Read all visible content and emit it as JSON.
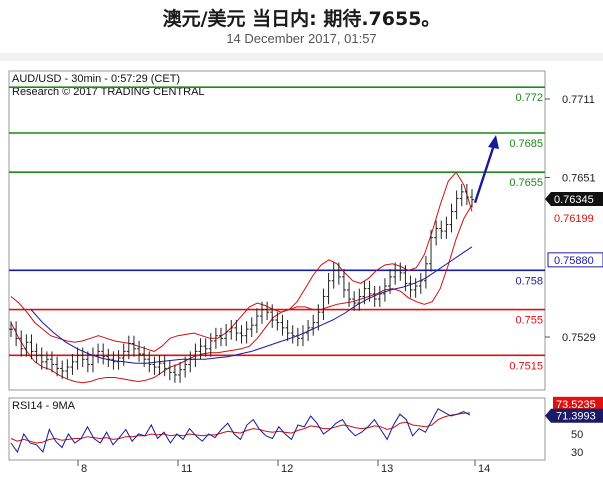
{
  "header": {
    "title": "澳元/美元 当日内: 期待.7655。",
    "date": "14 December 2017, 01:57"
  },
  "chart_info": {
    "line1": "AUD/USD - 30min - 0:57:29 (CET)",
    "line2": "Research © 2017 TRADING CENTRAL"
  },
  "chart_data": {
    "type": "line",
    "instrument": "AUD/USD",
    "timeframe": "30min",
    "x_ticks": [
      "8",
      "11",
      "12",
      "13",
      "14"
    ],
    "price_axis": {
      "ticks": [
        "0.7711",
        "0.7651",
        "0.7529"
      ],
      "current_price": "0.76345",
      "previous_level": "0.76199",
      "blue_level": "0.75880"
    },
    "levels": [
      {
        "label": "0.772",
        "value": 0.772,
        "color": "#1a8a1a"
      },
      {
        "label": "0.7685",
        "value": 0.7685,
        "color": "#1a8a1a"
      },
      {
        "label": "0.7655",
        "value": 0.7655,
        "color": "#1a8a1a"
      },
      {
        "label": "0.758",
        "value": 0.758,
        "color": "#1a1aaa"
      },
      {
        "label": "0.755",
        "value": 0.755,
        "color": "#e01010"
      },
      {
        "label": "0.7515",
        "value": 0.7515,
        "color": "#e01010"
      }
    ],
    "price_series": [
      0.7535,
      0.7528,
      0.752,
      0.7525,
      0.7518,
      0.7515,
      0.751,
      0.7512,
      0.7508,
      0.7505,
      0.7503,
      0.7506,
      0.751,
      0.7515,
      0.7512,
      0.7508,
      0.7515,
      0.7518,
      0.7514,
      0.7512,
      0.751,
      0.7513,
      0.7518,
      0.7524,
      0.752,
      0.7516,
      0.7512,
      0.7508,
      0.7506,
      0.7509,
      0.7505,
      0.7502,
      0.75,
      0.7504,
      0.7508,
      0.7512,
      0.7518,
      0.7522,
      0.752,
      0.7526,
      0.753,
      0.7528,
      0.7533,
      0.7536,
      0.7532,
      0.753,
      0.7535,
      0.7538,
      0.7545,
      0.755,
      0.7548,
      0.7542,
      0.754,
      0.7536,
      0.7532,
      0.753,
      0.7528,
      0.7532,
      0.7536,
      0.754,
      0.7548,
      0.756,
      0.7572,
      0.758,
      0.7575,
      0.7565,
      0.7558,
      0.7555,
      0.756,
      0.7566,
      0.7562,
      0.7558,
      0.7562,
      0.7568,
      0.7575,
      0.758,
      0.7578,
      0.757,
      0.7565,
      0.7568,
      0.7572,
      0.7585,
      0.7605,
      0.7612,
      0.761,
      0.7615,
      0.7625,
      0.7635,
      0.764,
      0.7636,
      0.7634
    ],
    "upper_band": [
      0.756,
      0.7555,
      0.7548,
      0.754,
      0.7535,
      0.753,
      0.7528,
      0.7526,
      0.7525,
      0.7526,
      0.7528,
      0.753,
      0.7528,
      0.7526,
      0.7525,
      0.7524,
      0.7522,
      0.752,
      0.7518,
      0.7522,
      0.7528,
      0.753,
      0.7531,
      0.7532,
      0.753,
      0.7528,
      0.7528,
      0.7532,
      0.7538,
      0.7545,
      0.7552,
      0.7555,
      0.7553,
      0.755,
      0.7548,
      0.755,
      0.7556,
      0.7566,
      0.7576,
      0.7584,
      0.7588,
      0.7585,
      0.7578,
      0.7572,
      0.757,
      0.7574,
      0.758,
      0.7584,
      0.7585,
      0.7583,
      0.758,
      0.7582,
      0.7592,
      0.761,
      0.763,
      0.7648,
      0.7655,
      0.7645,
      0.7625
    ],
    "lower_band": [
      0.754,
      0.7528,
      0.7518,
      0.751,
      0.7506,
      0.7504,
      0.75,
      0.7497,
      0.7495,
      0.7494,
      0.7495,
      0.7497,
      0.7498,
      0.7498,
      0.7497,
      0.7496,
      0.7495,
      0.7496,
      0.7498,
      0.7502,
      0.7506,
      0.7508,
      0.7511,
      0.7514,
      0.7516,
      0.7517,
      0.7517,
      0.7518,
      0.7519,
      0.752,
      0.7522,
      0.7528,
      0.7536,
      0.7544,
      0.7548,
      0.755,
      0.7552,
      0.7552,
      0.755,
      0.755,
      0.7552,
      0.7554,
      0.7555,
      0.7556,
      0.7558,
      0.756,
      0.7562,
      0.7565,
      0.7566,
      0.7564,
      0.7559,
      0.7556,
      0.7554,
      0.7556,
      0.7566,
      0.7584,
      0.7604,
      0.762,
      0.763
    ],
    "moving_average": [
      0.755,
      0.754,
      0.7532,
      0.7525,
      0.752,
      0.7516,
      0.7513,
      0.7511,
      0.751,
      0.7509,
      0.7509,
      0.751,
      0.7511,
      0.7512,
      0.7512,
      0.7512,
      0.7513,
      0.7514,
      0.7516,
      0.7518,
      0.7521,
      0.7524,
      0.7527,
      0.753,
      0.7534,
      0.7538,
      0.7542,
      0.7547,
      0.7553,
      0.7558,
      0.7562,
      0.7565,
      0.7567,
      0.757,
      0.7574,
      0.758,
      0.7586,
      0.7592,
      0.7598
    ],
    "projection": {
      "from": 0.7634,
      "to": 0.7685
    },
    "rsi": {
      "label": "RSI14 - 9MA",
      "ticks": [
        "70",
        "50",
        "30"
      ],
      "rsi_value": "71.3993",
      "ma_value": "73.5235",
      "rsi_series": [
        40,
        30,
        50,
        40,
        38,
        30,
        55,
        42,
        35,
        50,
        40,
        45,
        58,
        45,
        40,
        52,
        38,
        46,
        55,
        42,
        50,
        48,
        60,
        45,
        52,
        40,
        50,
        44,
        56,
        48,
        42,
        50,
        46,
        55,
        62,
        50,
        44,
        60,
        66,
        55,
        48,
        45,
        58,
        50,
        44,
        60,
        58,
        70,
        62,
        50,
        55,
        62,
        66,
        55,
        48,
        52,
        58,
        66,
        55,
        44,
        60,
        72,
        66,
        48,
        56,
        52,
        65,
        78,
        74,
        70,
        72,
        75,
        71
      ],
      "ma_series": [
        45,
        42,
        44,
        42,
        40,
        41,
        44,
        45,
        43,
        44,
        45,
        45,
        47,
        46,
        45,
        46,
        44,
        45,
        47,
        47,
        48,
        48,
        50,
        49,
        50,
        48,
        49,
        48,
        50,
        49,
        48,
        49,
        49,
        51,
        53,
        52,
        51,
        54,
        56,
        55,
        53,
        52,
        53,
        52,
        51,
        54,
        56,
        59,
        58,
        56,
        56,
        58,
        60,
        59,
        57,
        56,
        57,
        59,
        58,
        55,
        57,
        62,
        63,
        60,
        59,
        58,
        60,
        66,
        69,
        71,
        72,
        73,
        73.5
      ]
    }
  },
  "colors": {
    "support": "#e01010",
    "resistance": "#1a8a1a",
    "pivot": "#1a1aaa",
    "price": "#222222",
    "bands": "#cc1111",
    "moving_average": "#1a1aaa",
    "arrow": "#1a1a99"
  }
}
